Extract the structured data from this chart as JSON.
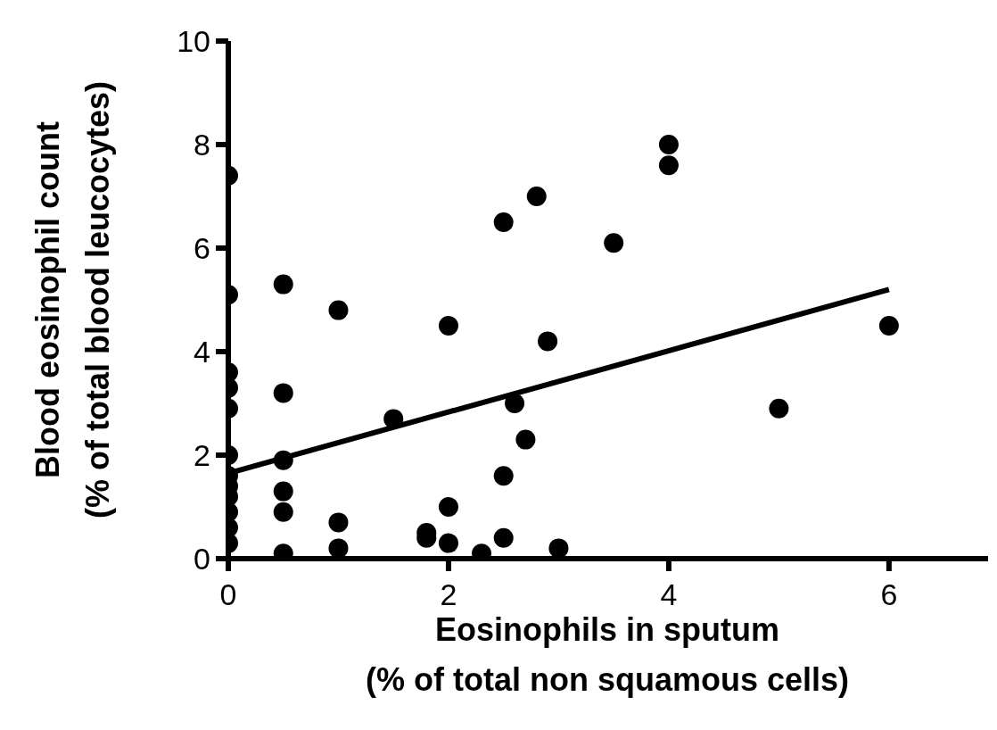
{
  "chart_data": {
    "type": "scatter",
    "xlabel": "Eosinophils in sputum\n(% of total non squamous cells)",
    "ylabel": "Blood eosinophil count\n(% of total blood leucocytes)",
    "xlim": [
      0,
      6.9
    ],
    "xticks": [
      0,
      2,
      4,
      6
    ],
    "ylim": [
      0,
      10
    ],
    "yticks": [
      0,
      2,
      4,
      6,
      8,
      10
    ],
    "series": [
      {
        "marker": "circle",
        "color": "#000000",
        "x": [
          0,
          0,
          0,
          0,
          0,
          0,
          0,
          0,
          0,
          0,
          0,
          0,
          0.5,
          0.5,
          0.5,
          0.5,
          0.5,
          0.5,
          1,
          1,
          1,
          1.5,
          1.8,
          1.8,
          2,
          2,
          2,
          2.3,
          2.5,
          2.5,
          2.5,
          2.6,
          2.7,
          2.8,
          2.9,
          3,
          3.5,
          4,
          4,
          5,
          6
        ],
        "values": [
          7.4,
          5.1,
          3.6,
          3.3,
          2.9,
          2.0,
          1.6,
          1.4,
          1.2,
          0.9,
          0.6,
          0.3,
          5.3,
          3.2,
          1.9,
          1.3,
          0.9,
          0.1,
          4.8,
          0.7,
          0.2,
          2.7,
          0.5,
          0.4,
          4.5,
          1.0,
          0.3,
          0.1,
          6.5,
          1.6,
          0.4,
          3.0,
          2.3,
          7.0,
          4.2,
          0.2,
          6.1,
          8.0,
          7.6,
          2.9,
          4.5
        ]
      },
      {
        "type": "line",
        "marker": "none",
        "color": "#000000",
        "x": [
          0,
          6
        ],
        "values": [
          1.65,
          5.2
        ]
      }
    ]
  }
}
